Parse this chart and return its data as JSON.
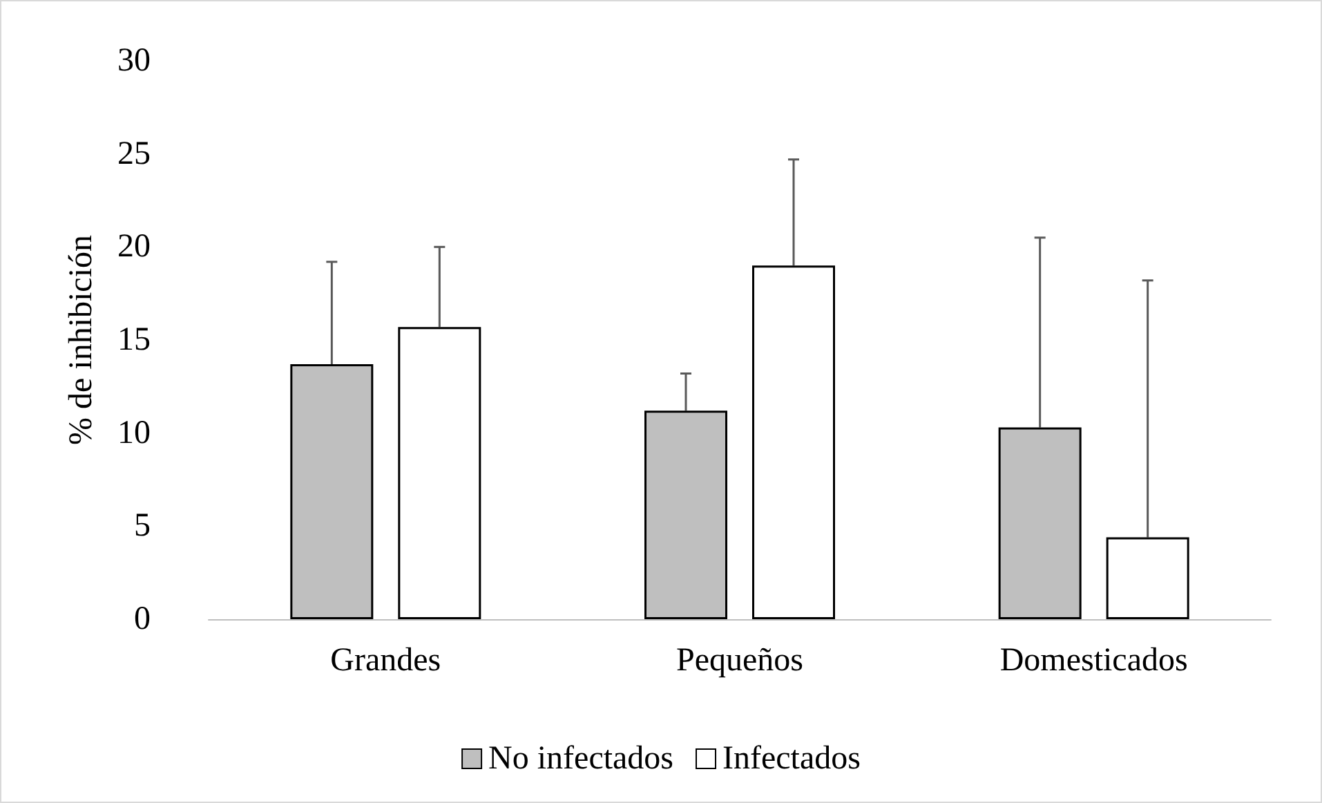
{
  "chart_data": {
    "type": "bar",
    "ylabel": "% de inhibición",
    "categories": [
      "Grandes",
      "Pequeños",
      "Domesticados"
    ],
    "series": [
      {
        "name": "No infectados",
        "color": "#bfbfbf",
        "values": [
          13.7,
          11.2,
          10.3
        ],
        "errors": [
          [
            13.7,
            19.2
          ],
          [
            11.2,
            13.2
          ],
          [
            10.3,
            20.5
          ]
        ]
      },
      {
        "name": "Infectados",
        "color": "#ffffff",
        "values": [
          15.7,
          19.0,
          4.4
        ],
        "errors": [
          [
            15.7,
            20.0
          ],
          [
            19.0,
            24.7
          ],
          [
            4.4,
            18.2
          ]
        ]
      }
    ],
    "ylim": [
      0,
      30
    ],
    "yticks": [
      0,
      5,
      10,
      15,
      20,
      25,
      30
    ],
    "grid": false,
    "legend": "bottom"
  }
}
